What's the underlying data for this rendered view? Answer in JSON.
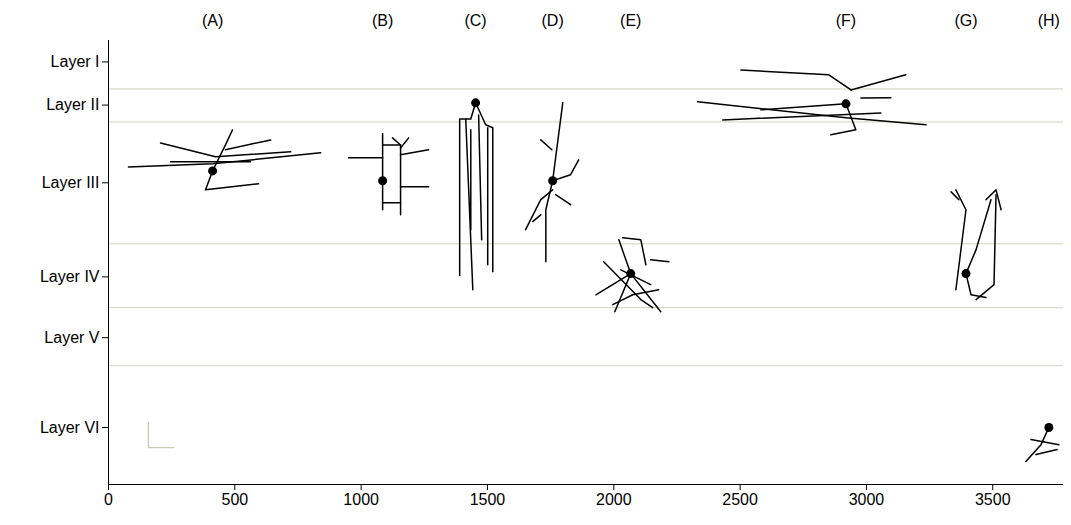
{
  "chart_data": {
    "type": "line",
    "color": "#000000",
    "xlim": [
      0,
      3780
    ],
    "ylim": [
      0,
      1760
    ],
    "xticks": [
      0,
      500,
      1000,
      1500,
      2000,
      2500,
      3000,
      3500
    ],
    "yticks": [
      {
        "value": 1675,
        "label": "Layer I"
      },
      {
        "value": 1504,
        "label": "Layer II"
      },
      {
        "value": 1196,
        "label": "Layer III"
      },
      {
        "value": 823,
        "label": "Layer IV"
      },
      {
        "value": 582,
        "label": "Layer V"
      },
      {
        "value": 226,
        "label": "Layer VI"
      }
    ],
    "layer_boundaries": [
      1568,
      1437,
      954,
      701,
      471
    ],
    "scale_bar": {
      "x": 158,
      "y": 146,
      "length": 100
    },
    "neurons": [
      {
        "name": "(A)",
        "soma": [
          412,
          1243
        ],
        "branches": [
          [
            [
              79,
              1259
            ],
            [
              412,
              1271
            ],
            [
              840,
              1315
            ]
          ],
          [
            [
              206,
              1354
            ],
            [
              424,
              1299
            ],
            [
              721,
              1319
            ]
          ],
          [
            [
              412,
              1243
            ],
            [
              384,
              1168
            ],
            [
              594,
              1192
            ]
          ],
          [
            [
              412,
              1243
            ],
            [
              463,
              1346
            ],
            [
              491,
              1406
            ]
          ],
          [
            [
              463,
              1327
            ],
            [
              642,
              1366
            ]
          ],
          [
            [
              246,
              1279
            ],
            [
              562,
              1279
            ]
          ]
        ]
      },
      {
        "name": "(B)",
        "soma": [
          1085,
          1204
        ],
        "branches": [
          [
            [
              950,
              1295
            ],
            [
              1085,
              1295
            ],
            [
              1085,
              1089
            ]
          ],
          [
            [
              1085,
              1390
            ],
            [
              1085,
              1295
            ]
          ],
          [
            [
              1085,
              1346
            ],
            [
              1156,
              1346
            ],
            [
              1156,
              1069
            ]
          ],
          [
            [
              1156,
              1346
            ],
            [
              1124,
              1374
            ]
          ],
          [
            [
              1156,
              1334
            ],
            [
              1188,
              1374
            ]
          ],
          [
            [
              1156,
              1307
            ],
            [
              1267,
              1327
            ]
          ],
          [
            [
              1156,
              1180
            ],
            [
              1267,
              1180
            ]
          ],
          [
            [
              1085,
              1117
            ],
            [
              1156,
              1117
            ]
          ]
        ]
      },
      {
        "name": "(C)",
        "soma": [
          1453,
          1513
        ],
        "branches": [
          [
            [
              1453,
              1513
            ],
            [
              1434,
              1449
            ],
            [
              1390,
              1449
            ],
            [
              1390,
              828
            ]
          ],
          [
            [
              1414,
              1449
            ],
            [
              1442,
              772
            ]
          ],
          [
            [
              1453,
              1513
            ],
            [
              1493,
              1426
            ],
            [
              1521,
              1414
            ],
            [
              1521,
              843
            ]
          ],
          [
            [
              1501,
              1414
            ],
            [
              1501,
              871
            ]
          ],
          [
            [
              1465,
              1465
            ],
            [
              1477,
              970
            ]
          ],
          [
            [
              1434,
              1406
            ],
            [
              1434,
              1010
            ]
          ]
        ]
      },
      {
        "name": "(D)",
        "soma": [
          1758,
          1204
        ],
        "branches": [
          [
            [
              1798,
              1513
            ],
            [
              1758,
              1204
            ],
            [
              1731,
              1089
            ],
            [
              1731,
              883
            ]
          ],
          [
            [
              1758,
              1204
            ],
            [
              1829,
              1228
            ],
            [
              1861,
              1287
            ]
          ],
          [
            [
              1758,
              1168
            ],
            [
              1711,
              1129
            ],
            [
              1651,
              1010
            ]
          ],
          [
            [
              1711,
              1366
            ],
            [
              1755,
              1327
            ]
          ],
          [
            [
              1770,
              1149
            ],
            [
              1829,
              1109
            ]
          ],
          [
            [
              1711,
              1069
            ],
            [
              1679,
              1042
            ]
          ]
        ]
      },
      {
        "name": "(E)",
        "soma": [
          2067,
          836
        ],
        "branches": [
          [
            [
              1929,
              752
            ],
            [
              2067,
              836
            ],
            [
              2186,
              685
            ]
          ],
          [
            [
              1960,
              883
            ],
            [
              2107,
              733
            ],
            [
              2154,
              701
            ]
          ],
          [
            [
              2020,
              970
            ],
            [
              2067,
              836
            ],
            [
              2004,
              685
            ]
          ],
          [
            [
              2035,
              978
            ],
            [
              2107,
              970
            ],
            [
              2127,
              871
            ]
          ],
          [
            [
              2146,
              891
            ],
            [
              2218,
              883
            ]
          ],
          [
            [
              1996,
              713
            ],
            [
              2075,
              752
            ],
            [
              2178,
              772
            ]
          ],
          [
            [
              2028,
              851
            ],
            [
              2146,
              792
            ]
          ]
        ]
      },
      {
        "name": "(F)",
        "soma": [
          2919,
          1509
        ],
        "branches": [
          [
            [
              2332,
              1517
            ],
            [
              2919,
              1454
            ],
            [
              3236,
              1426
            ]
          ],
          [
            [
              2431,
              1445
            ],
            [
              3057,
              1473
            ]
          ],
          [
            [
              2503,
              1643
            ],
            [
              2851,
              1624
            ],
            [
              2939,
              1564
            ]
          ],
          [
            [
              2939,
              1564
            ],
            [
              3156,
              1624
            ]
          ],
          [
            [
              2919,
              1509
            ],
            [
              2958,
              1406
            ],
            [
              2859,
              1386
            ]
          ],
          [
            [
              2978,
              1532
            ],
            [
              3097,
              1533
            ]
          ],
          [
            [
              2582,
              1485
            ],
            [
              2919,
              1509
            ]
          ]
        ]
      },
      {
        "name": "(G)",
        "soma": [
          3394,
          836
        ],
        "branches": [
          [
            [
              3354,
              1168
            ],
            [
              3394,
              1089
            ],
            [
              3354,
              772
            ]
          ],
          [
            [
              3394,
              836
            ],
            [
              3414,
              752
            ],
            [
              3473,
              741
            ]
          ],
          [
            [
              3473,
              1129
            ],
            [
              3513,
              1168
            ],
            [
              3533,
              1089
            ]
          ],
          [
            [
              3394,
              836
            ],
            [
              3434,
              931
            ],
            [
              3493,
              1129
            ]
          ],
          [
            [
              3513,
              1149
            ],
            [
              3505,
              792
            ],
            [
              3434,
              733
            ]
          ],
          [
            [
              3335,
              1160
            ],
            [
              3366,
              1129
            ]
          ]
        ]
      },
      {
        "name": "(H)",
        "soma": [
          3722,
          226
        ],
        "branches": [
          [
            [
              3722,
              226
            ],
            [
              3691,
              158
            ],
            [
              3631,
              91
            ]
          ],
          [
            [
              3651,
              178
            ],
            [
              3762,
              158
            ]
          ],
          [
            [
              3671,
              119
            ],
            [
              3755,
              139
            ]
          ]
        ]
      }
    ]
  }
}
